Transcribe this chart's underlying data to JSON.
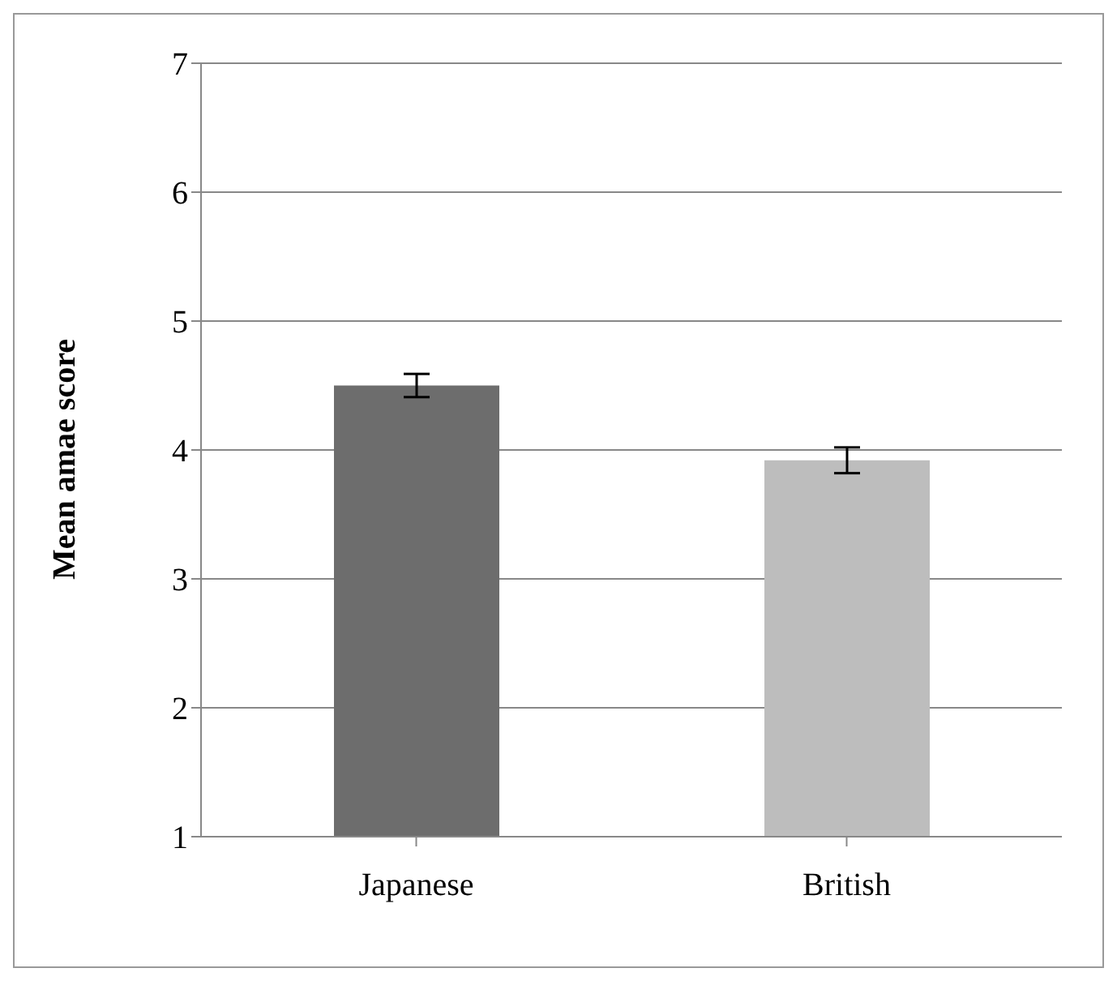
{
  "chart_data": {
    "type": "bar",
    "ylabel": "Mean amae score",
    "categories": [
      "Japanese",
      "British"
    ],
    "values": [
      4.5,
      3.92
    ],
    "colors": [
      "#6d6d6d",
      "#bdbdbd"
    ],
    "errors": [
      0.09,
      0.1
    ],
    "ylim": [
      1,
      7
    ],
    "yticks": [
      1,
      2,
      3,
      4,
      5,
      6,
      7
    ],
    "grid": "y",
    "legend": false
  }
}
